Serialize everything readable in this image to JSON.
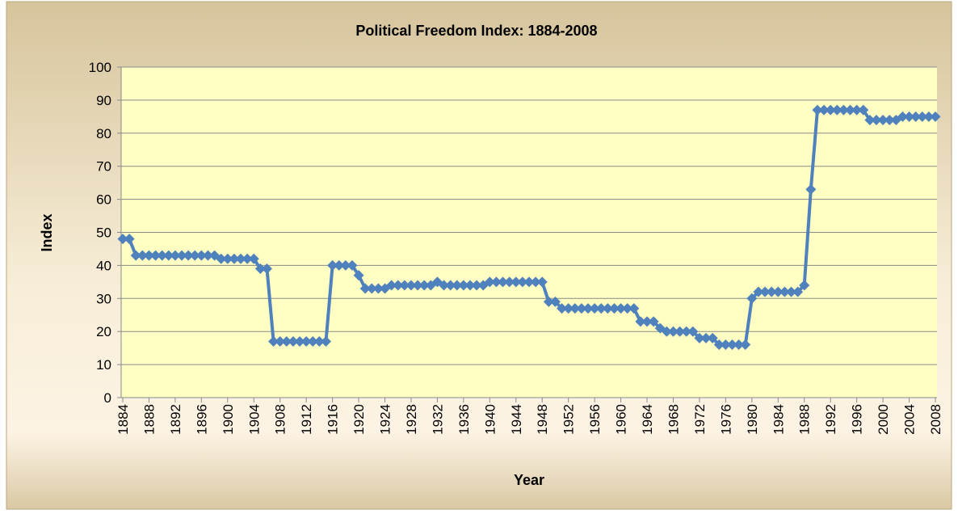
{
  "chart_data": {
    "type": "line",
    "title": "Political Freedom Index: 1884-2008",
    "xlabel": "Year",
    "ylabel": "Index",
    "x": [
      1884,
      1885,
      1886,
      1887,
      1888,
      1889,
      1890,
      1891,
      1892,
      1893,
      1894,
      1895,
      1896,
      1897,
      1898,
      1899,
      1900,
      1901,
      1902,
      1903,
      1904,
      1905,
      1906,
      1907,
      1908,
      1909,
      1910,
      1911,
      1912,
      1913,
      1914,
      1915,
      1916,
      1917,
      1918,
      1919,
      1920,
      1921,
      1922,
      1923,
      1924,
      1925,
      1926,
      1927,
      1928,
      1929,
      1930,
      1931,
      1932,
      1933,
      1934,
      1935,
      1936,
      1937,
      1938,
      1939,
      1940,
      1941,
      1942,
      1943,
      1944,
      1945,
      1946,
      1947,
      1948,
      1949,
      1950,
      1951,
      1952,
      1953,
      1954,
      1955,
      1956,
      1957,
      1958,
      1959,
      1960,
      1961,
      1962,
      1963,
      1964,
      1965,
      1966,
      1967,
      1968,
      1969,
      1970,
      1971,
      1972,
      1973,
      1974,
      1975,
      1976,
      1977,
      1978,
      1979,
      1980,
      1981,
      1982,
      1983,
      1984,
      1985,
      1986,
      1987,
      1988,
      1989,
      1990,
      1991,
      1992,
      1993,
      1994,
      1995,
      1996,
      1997,
      1998,
      1999,
      2000,
      2001,
      2002,
      2003,
      2004,
      2005,
      2006,
      2007,
      2008
    ],
    "series": [
      {
        "color": "#4f81bd",
        "values": [
          48,
          48,
          43,
          43,
          43,
          43,
          43,
          43,
          43,
          43,
          43,
          43,
          43,
          43,
          43,
          42,
          42,
          42,
          42,
          42,
          42,
          39,
          39,
          17,
          17,
          17,
          17,
          17,
          17,
          17,
          17,
          17,
          40,
          40,
          40,
          40,
          37,
          33,
          33,
          33,
          33,
          34,
          34,
          34,
          34,
          34,
          34,
          34,
          35,
          34,
          34,
          34,
          34,
          34,
          34,
          34,
          35,
          35,
          35,
          35,
          35,
          35,
          35,
          35,
          35,
          29,
          29,
          27,
          27,
          27,
          27,
          27,
          27,
          27,
          27,
          27,
          27,
          27,
          27,
          23,
          23,
          23,
          21,
          20,
          20,
          20,
          20,
          20,
          18,
          18,
          18,
          16,
          16,
          16,
          16,
          16,
          30,
          32,
          32,
          32,
          32,
          32,
          32,
          32,
          34,
          63,
          87,
          87,
          87,
          87,
          87,
          87,
          87,
          87,
          84,
          84,
          84,
          84,
          84,
          85,
          85,
          85,
          85,
          85,
          85
        ]
      }
    ],
    "xlim": [
      1884,
      2008
    ],
    "xticks": [
      1884,
      1888,
      1892,
      1896,
      1900,
      1904,
      1908,
      1912,
      1916,
      1920,
      1924,
      1928,
      1932,
      1936,
      1940,
      1944,
      1948,
      1952,
      1956,
      1960,
      1964,
      1968,
      1972,
      1976,
      1980,
      1984,
      1988,
      1992,
      1996,
      2000,
      2004,
      2008
    ],
    "ylim": [
      0,
      100
    ],
    "yticks": [
      0,
      10,
      20,
      30,
      40,
      50,
      60,
      70,
      80,
      90,
      100
    ],
    "grid": true
  }
}
